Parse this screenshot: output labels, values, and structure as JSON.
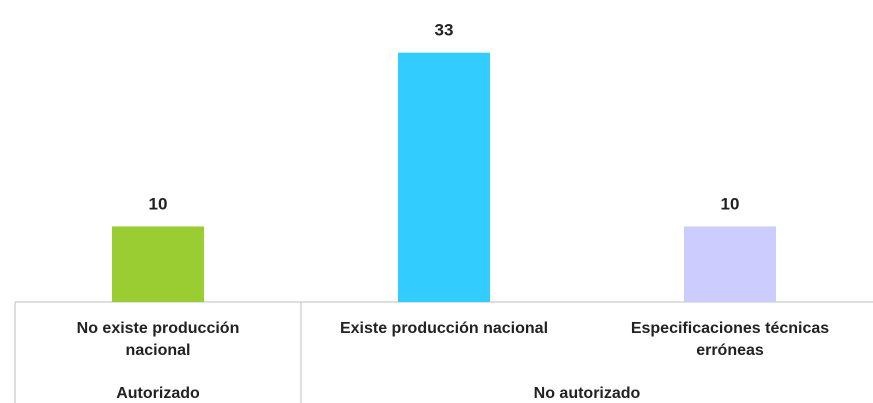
{
  "chart_data": {
    "type": "bar",
    "title": "",
    "xlabel": "",
    "ylabel": "",
    "ylim": [
      0,
      36
    ],
    "grid": false,
    "legend": "none",
    "categories": [
      [
        "No existe producción",
        "nacional"
      ],
      [
        "Existe producción nacional"
      ],
      [
        "Especificaciones técnicas",
        "erróneas"
      ]
    ],
    "values": [
      10,
      33,
      10
    ],
    "data_labels": [
      "10",
      "33",
      "10"
    ],
    "colors": [
      "#9acd32",
      "#33ccff",
      "#ccccff"
    ],
    "groups": [
      {
        "label": "Autorizado",
        "span": [
          0,
          0
        ]
      },
      {
        "label": "No autorizado",
        "span": [
          1,
          2
        ]
      }
    ]
  }
}
